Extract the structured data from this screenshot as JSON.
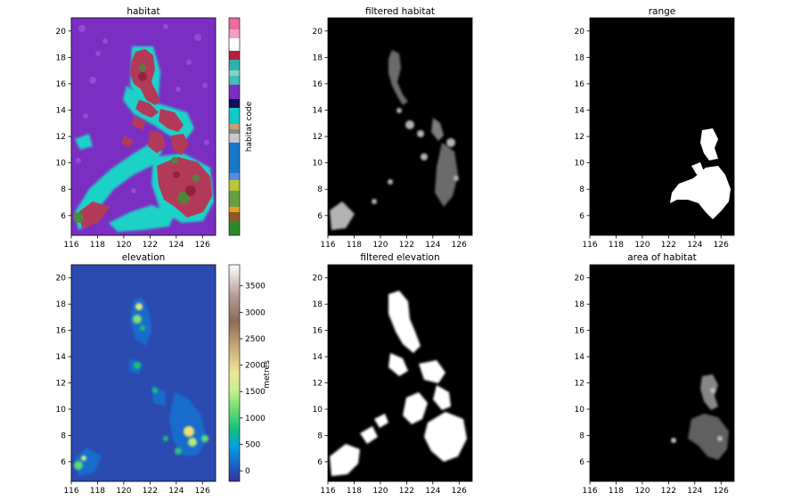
{
  "chart_data": [
    {
      "type": "heatmap",
      "title": "habitat",
      "x_ticks": [
        116,
        118,
        120,
        122,
        124,
        126
      ],
      "y_ticks": [
        6,
        8,
        10,
        12,
        14,
        16,
        18,
        20
      ],
      "xlim": [
        116,
        127
      ],
      "ylim": [
        4.5,
        21
      ],
      "colormap": "categorical",
      "colorbar": {
        "label": "habitat code",
        "ticks": []
      }
    },
    {
      "type": "heatmap",
      "title": "filtered habitat",
      "x_ticks": [
        116,
        118,
        120,
        122,
        124,
        126
      ],
      "y_ticks": [
        6,
        8,
        10,
        12,
        14,
        16,
        18,
        20
      ],
      "xlim": [
        116,
        127
      ],
      "ylim": [
        4.5,
        21
      ],
      "colormap": "binary black/white"
    },
    {
      "type": "heatmap",
      "title": "range",
      "x_ticks": [
        116,
        118,
        120,
        122,
        124,
        126
      ],
      "y_ticks": [
        6,
        8,
        10,
        12,
        14,
        16,
        18,
        20
      ],
      "xlim": [
        116,
        127
      ],
      "ylim": [
        4.5,
        21
      ],
      "colormap": "binary black/white"
    },
    {
      "type": "heatmap",
      "title": "elevation",
      "x_ticks": [
        116,
        118,
        120,
        122,
        124,
        126
      ],
      "y_ticks": [
        6,
        8,
        10,
        12,
        14,
        16,
        18,
        20
      ],
      "xlim": [
        116,
        127
      ],
      "ylim": [
        4.5,
        21
      ],
      "colormap": "terrain",
      "colorbar": {
        "label": "metres",
        "ticks": [
          0,
          500,
          1000,
          1500,
          2000,
          2500,
          3000,
          3500
        ],
        "range": [
          -200,
          3900
        ]
      }
    },
    {
      "type": "heatmap",
      "title": "filtered elevation",
      "x_ticks": [
        116,
        118,
        120,
        122,
        124,
        126
      ],
      "y_ticks": [
        6,
        8,
        10,
        12,
        14,
        16,
        18,
        20
      ],
      "xlim": [
        116,
        127
      ],
      "ylim": [
        4.5,
        21
      ],
      "colormap": "binary black/white"
    },
    {
      "type": "heatmap",
      "title": "area of habitat",
      "x_ticks": [
        116,
        118,
        120,
        122,
        124,
        126
      ],
      "y_ticks": [
        6,
        8,
        10,
        12,
        14,
        16,
        18,
        20
      ],
      "xlim": [
        116,
        127
      ],
      "ylim": [
        4.5,
        21
      ],
      "colormap": "binary black/white"
    }
  ],
  "colors": {
    "ocean_habitat": "#7b2fc2",
    "coastal_habitat": "#1fd2c8",
    "forest_habitat": "#b23a58",
    "elevation_low": "#2b4bb0",
    "background_black": "#000000",
    "mask_white": "#ffffff"
  }
}
